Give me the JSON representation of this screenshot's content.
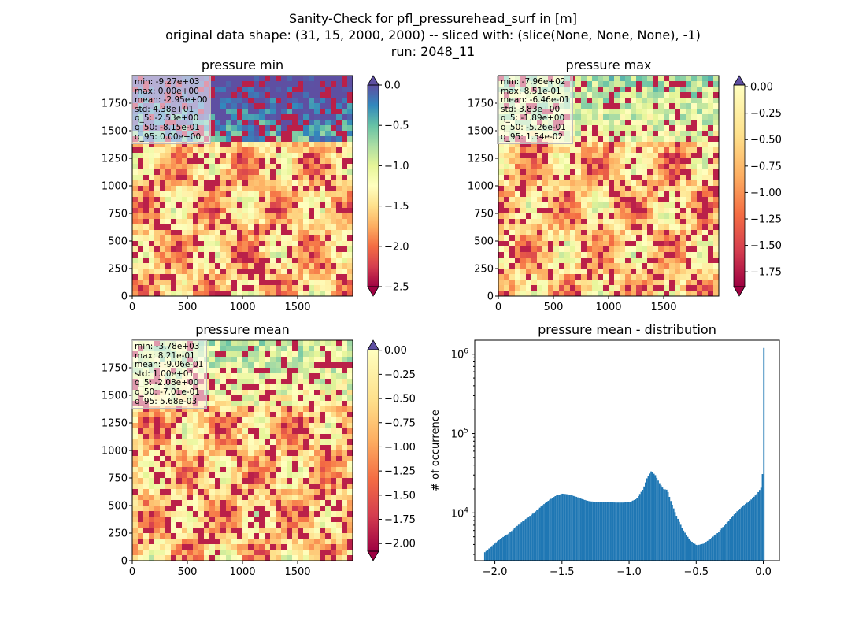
{
  "figure": {
    "suptitle_lines": [
      "Sanity-Check for pfl_pressurehead_surf in [m]",
      "original data shape: (31, 15, 2000, 2000) -- sliced with: (slice(None, None, None), -1)",
      "run: 2048_11"
    ]
  },
  "panels": [
    {
      "title": "pressure min",
      "stats": [
        "min: -9.27e+03",
        "max: 0.00e+00",
        "mean: -2.95e+00",
        "std: 4.38e+01",
        "q_5: -2.53e+00",
        "q_50: -8.15e-01",
        "q_95: 0.00e+00"
      ],
      "colorbar": {
        "vmin": -2.5,
        "vmax": 0.0,
        "ticks": [
          0.0,
          -0.5,
          -1.0,
          -1.5,
          -2.0,
          -2.5
        ],
        "tick_labels": [
          "0.0",
          "−0.5",
          "−1.0",
          "−1.5",
          "−2.0",
          "−2.5"
        ],
        "extend": "both"
      }
    },
    {
      "title": "pressure max",
      "stats": [
        "min: -7.96e+02",
        "max: 8.51e-01",
        "mean: -6.46e-01",
        "std: 3.83e+00",
        "q_5: -1.89e+00",
        "q_50: -5.26e-01",
        "q_95: 1.54e-02"
      ],
      "colorbar": {
        "vmin": -1.89,
        "vmax": 0.0154,
        "ticks": [
          0.0,
          -0.25,
          -0.5,
          -0.75,
          -1.0,
          -1.25,
          -1.5,
          -1.75
        ],
        "tick_labels": [
          "0.00",
          "−0.25",
          "−0.50",
          "−0.75",
          "−1.00",
          "−1.25",
          "−1.50",
          "−1.75"
        ],
        "extend": "both"
      }
    },
    {
      "title": "pressure mean",
      "stats": [
        "min: -3.78e+03",
        "max: 8.21e-01",
        "mean: -9.06e-01",
        "std: 1.00e+01",
        "q_5: -2.08e+00",
        "q_50: -7.01e-01",
        "q_95: 5.68e-03"
      ],
      "colorbar": {
        "vmin": -2.08,
        "vmax": 0.00568,
        "ticks": [
          0.0,
          -0.25,
          -0.5,
          -0.75,
          -1.0,
          -1.25,
          -1.5,
          -1.75,
          -2.0
        ],
        "tick_labels": [
          "0.00",
          "−0.25",
          "−0.50",
          "−0.75",
          "−1.00",
          "−1.25",
          "−1.50",
          "−1.75",
          "−2.00"
        ],
        "extend": "both"
      }
    }
  ],
  "map_axes": {
    "x_ticks": [
      0,
      500,
      1000,
      1500
    ],
    "x_tick_labels": [
      "0",
      "500",
      "1000",
      "1500"
    ],
    "y_ticks": [
      0,
      250,
      500,
      750,
      1000,
      1250,
      1500,
      1750
    ],
    "y_tick_labels": [
      "0",
      "250",
      "500",
      "750",
      "1000",
      "1250",
      "1500",
      "1750"
    ],
    "xlim": [
      0,
      2000
    ],
    "ylim": [
      0,
      2000
    ]
  },
  "colormap": "Spectral",
  "chart_data": [
    {
      "type": "heatmap",
      "title": "pressure min",
      "xlim": [
        0,
        2000
      ],
      "ylim": [
        0,
        2000
      ],
      "value_range": [
        -2.5,
        0.0
      ]
    },
    {
      "type": "heatmap",
      "title": "pressure max",
      "xlim": [
        0,
        2000
      ],
      "ylim": [
        0,
        2000
      ],
      "value_range": [
        -1.89,
        0.0154
      ]
    },
    {
      "type": "heatmap",
      "title": "pressure mean",
      "xlim": [
        0,
        2000
      ],
      "ylim": [
        0,
        2000
      ],
      "value_range": [
        -2.08,
        0.00568
      ]
    },
    {
      "type": "bar",
      "title": "pressure mean - distribution",
      "xlabel": "",
      "ylabel": "# of occurrence",
      "y_scale": "log",
      "xlim": [
        -2.15,
        0.12
      ],
      "ylim": [
        2500,
        1500000
      ],
      "x_ticks": [
        -2.0,
        -1.5,
        -1.0,
        -0.5,
        0.0
      ],
      "x_tick_labels": [
        "−2.0",
        "−1.5",
        "−1.0",
        "−0.5",
        "0.0"
      ],
      "y_ticks": [
        10000,
        100000,
        1000000
      ],
      "y_tick_labels": [
        "10^4",
        "10^5",
        "10^6"
      ],
      "bar_color": "#1f77b4",
      "bin_range": [
        -2.08,
        0.0
      ],
      "bins": [
        {
          "x": -2.08,
          "count": 3200
        },
        {
          "x": -2.0,
          "count": 4200
        },
        {
          "x": -1.95,
          "count": 4900
        },
        {
          "x": -1.9,
          "count": 5500
        },
        {
          "x": -1.85,
          "count": 6600
        },
        {
          "x": -1.8,
          "count": 7800
        },
        {
          "x": -1.75,
          "count": 9000
        },
        {
          "x": -1.7,
          "count": 10500
        },
        {
          "x": -1.65,
          "count": 12500
        },
        {
          "x": -1.6,
          "count": 14500
        },
        {
          "x": -1.55,
          "count": 16500
        },
        {
          "x": -1.5,
          "count": 17500
        },
        {
          "x": -1.45,
          "count": 17000
        },
        {
          "x": -1.4,
          "count": 16000
        },
        {
          "x": -1.35,
          "count": 14800
        },
        {
          "x": -1.3,
          "count": 14000
        },
        {
          "x": -1.25,
          "count": 13800
        },
        {
          "x": -1.2,
          "count": 13700
        },
        {
          "x": -1.15,
          "count": 13600
        },
        {
          "x": -1.1,
          "count": 13500
        },
        {
          "x": -1.05,
          "count": 13500
        },
        {
          "x": -1.0,
          "count": 13700
        },
        {
          "x": -0.95,
          "count": 15000
        },
        {
          "x": -0.9,
          "count": 20000
        },
        {
          "x": -0.87,
          "count": 28000
        },
        {
          "x": -0.84,
          "count": 33500
        },
        {
          "x": -0.81,
          "count": 30000
        },
        {
          "x": -0.78,
          "count": 24000
        },
        {
          "x": -0.75,
          "count": 20000
        },
        {
          "x": -0.72,
          "count": 19500
        },
        {
          "x": -0.7,
          "count": 15000
        },
        {
          "x": -0.65,
          "count": 9000
        },
        {
          "x": -0.6,
          "count": 6000
        },
        {
          "x": -0.55,
          "count": 4500
        },
        {
          "x": -0.5,
          "count": 3900
        },
        {
          "x": -0.45,
          "count": 4100
        },
        {
          "x": -0.4,
          "count": 4700
        },
        {
          "x": -0.35,
          "count": 5500
        },
        {
          "x": -0.3,
          "count": 6800
        },
        {
          "x": -0.25,
          "count": 8500
        },
        {
          "x": -0.2,
          "count": 10500
        },
        {
          "x": -0.15,
          "count": 12500
        },
        {
          "x": -0.1,
          "count": 14500
        },
        {
          "x": -0.05,
          "count": 17500
        },
        {
          "x": -0.02,
          "count": 21000
        },
        {
          "x": -0.01,
          "count": 33000
        },
        {
          "x": 0.0,
          "count": 1200000
        }
      ]
    }
  ]
}
